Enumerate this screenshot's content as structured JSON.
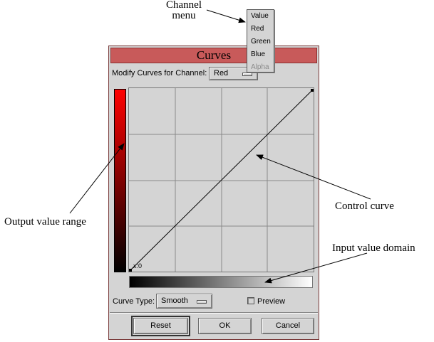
{
  "dialog": {
    "title": "Curves",
    "channel_label": "Modify Curves for Channel:",
    "channel_value": "Red",
    "coord_readout": "x:0",
    "curve_type_label": "Curve Type:",
    "curve_type_value": "Smooth",
    "preview_label": "Preview",
    "preview_checked": false,
    "buttons": {
      "reset": "Reset",
      "ok": "OK",
      "cancel": "Cancel"
    }
  },
  "channel_menu": {
    "items": [
      {
        "label": "Value",
        "enabled": true
      },
      {
        "label": "Red",
        "enabled": true
      },
      {
        "label": "Green",
        "enabled": true
      },
      {
        "label": "Blue",
        "enabled": true
      },
      {
        "label": "Alpha",
        "enabled": false
      }
    ]
  },
  "annotations": {
    "channel_menu_line1": "Channel",
    "channel_menu_line2": "menu",
    "output_range": "Output value range",
    "control_curve": "Control curve",
    "input_domain": "Input value domain"
  },
  "colors": {
    "titlebar": "#c85a5a",
    "dialog_bg": "#d4d4d4",
    "output_gradient_top": "#ff0000"
  }
}
